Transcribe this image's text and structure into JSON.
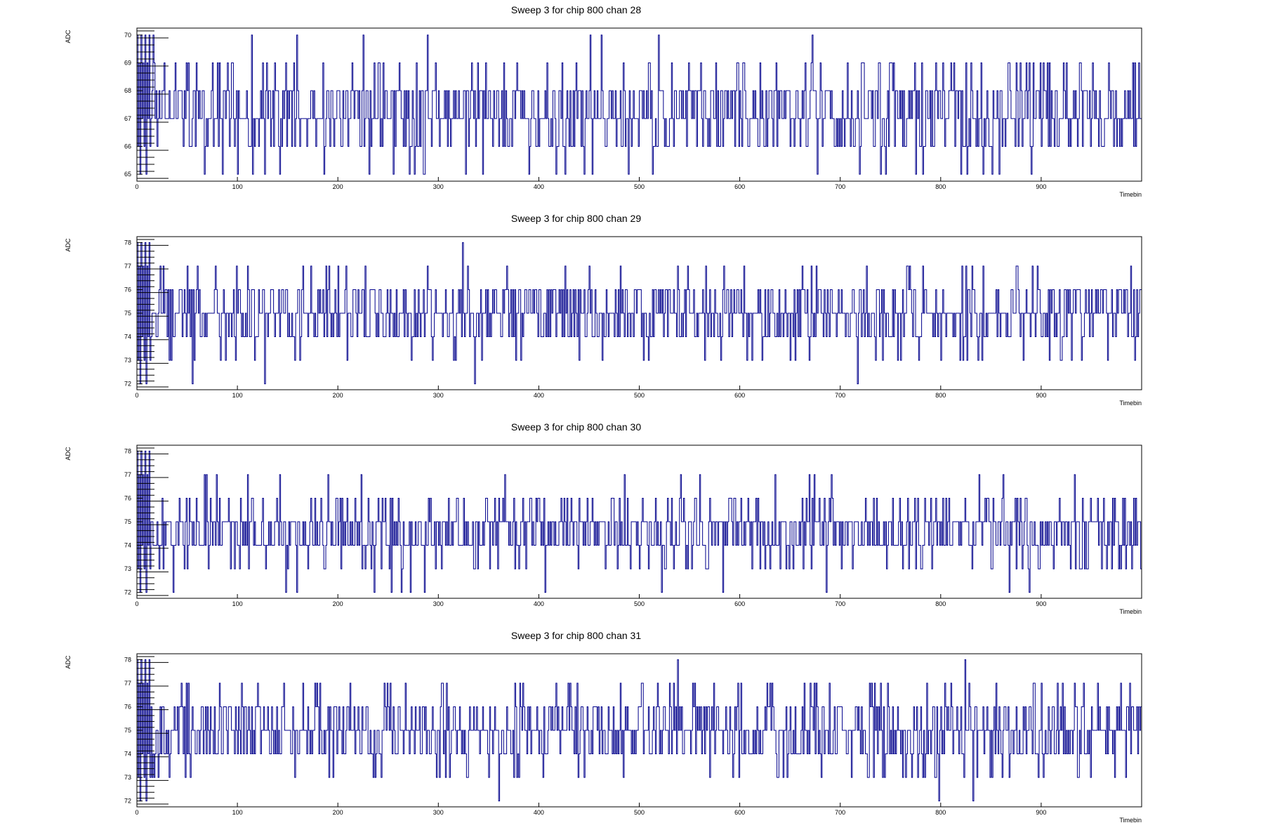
{
  "colors": {
    "trace": "#00008b",
    "frame": "#000000",
    "background": "#ffffff"
  },
  "chart_data": [
    {
      "type": "line",
      "style": "step",
      "title": "Sweep 3 for chip 800 chan 28",
      "xlabel": "Timebin",
      "ylabel": "ADC",
      "xlim": [
        0,
        1000
      ],
      "ylim": [
        64.75,
        70.25
      ],
      "x_ticks": [
        "0",
        "100",
        "200",
        "300",
        "400",
        "500",
        "600",
        "700",
        "800",
        "900"
      ],
      "y_ticks": [
        "65",
        "66",
        "67",
        "68",
        "69",
        "70"
      ],
      "baseline": 67.3,
      "spread": 0.95,
      "min": 65,
      "max": 70,
      "seed": 28,
      "bins": 1000,
      "grid": false,
      "legend": "none"
    },
    {
      "type": "line",
      "style": "step",
      "title": "Sweep 3 for chip 800 chan 29",
      "xlabel": "Timebin",
      "ylabel": "ADC",
      "xlim": [
        0,
        1000
      ],
      "ylim": [
        71.75,
        78.25
      ],
      "x_ticks": [
        "0",
        "100",
        "200",
        "300",
        "400",
        "500",
        "600",
        "700",
        "800",
        "900"
      ],
      "y_ticks": [
        "72",
        "73",
        "74",
        "75",
        "76",
        "77",
        "78"
      ],
      "baseline": 75.0,
      "spread": 0.95,
      "min": 72,
      "max": 78,
      "seed": 29,
      "bins": 1000,
      "grid": false,
      "legend": "none"
    },
    {
      "type": "line",
      "style": "step",
      "title": "Sweep 3 for chip 800 chan 30",
      "xlabel": "Timebin",
      "ylabel": "ADC",
      "xlim": [
        0,
        1000
      ],
      "ylim": [
        71.75,
        78.25
      ],
      "x_ticks": [
        "0",
        "100",
        "200",
        "300",
        "400",
        "500",
        "600",
        "700",
        "800",
        "900"
      ],
      "y_ticks": [
        "72",
        "73",
        "74",
        "75",
        "76",
        "77",
        "78"
      ],
      "baseline": 74.6,
      "spread": 0.9,
      "min": 72,
      "max": 78,
      "seed": 30,
      "bins": 1000,
      "grid": false,
      "legend": "none"
    },
    {
      "type": "line",
      "style": "step",
      "title": "Sweep 3 for chip 800 chan 31",
      "xlabel": "Timebin",
      "ylabel": "ADC",
      "xlim": [
        0,
        1000
      ],
      "ylim": [
        71.75,
        78.25
      ],
      "x_ticks": [
        "0",
        "100",
        "200",
        "300",
        "400",
        "500",
        "600",
        "700",
        "800",
        "900"
      ],
      "y_ticks": [
        "72",
        "73",
        "74",
        "75",
        "76",
        "77",
        "78"
      ],
      "baseline": 75.0,
      "spread": 0.95,
      "min": 72,
      "max": 78,
      "seed": 31,
      "bins": 1000,
      "grid": false,
      "legend": "none"
    }
  ]
}
